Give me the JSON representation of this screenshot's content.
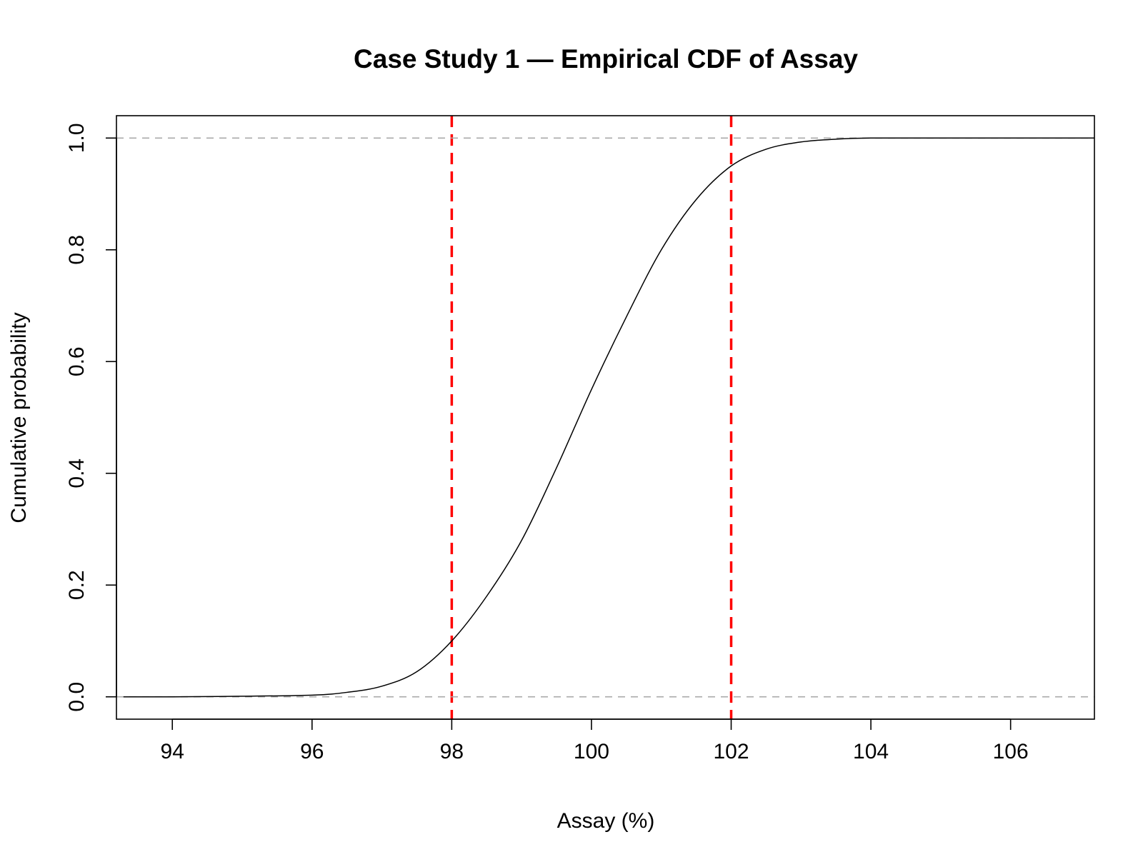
{
  "chart_data": {
    "type": "line",
    "title": "Case Study 1 — Empirical CDF of Assay",
    "xlabel": "Assay (%)",
    "ylabel": "Cumulative probability",
    "xlim": [
      93.2,
      107.2
    ],
    "ylim": [
      -0.04,
      1.04
    ],
    "x_ticks": [
      94,
      96,
      98,
      100,
      102,
      104,
      106
    ],
    "x_tick_labels": [
      "94",
      "96",
      "98",
      "100",
      "102",
      "104",
      "106"
    ],
    "y_ticks": [
      0,
      0.2,
      0.4,
      0.6,
      0.8,
      1.0
    ],
    "y_tick_labels": [
      "0.0",
      "0.2",
      "0.4",
      "0.6",
      "0.8",
      "1.0"
    ],
    "grid": false,
    "legend": "none",
    "series": [
      {
        "x": [
          93.3,
          94,
          95,
          96,
          96.5,
          97,
          97.5,
          98,
          98.5,
          99,
          99.5,
          100,
          100.5,
          101,
          101.5,
          102,
          102.5,
          103,
          103.5,
          104,
          105,
          106,
          107.2
        ],
        "y": [
          0.0,
          0.0,
          0.001,
          0.003,
          0.008,
          0.019,
          0.045,
          0.1,
          0.18,
          0.28,
          0.41,
          0.55,
          0.68,
          0.8,
          0.89,
          0.95,
          0.98,
          0.993,
          0.998,
          1.0,
          1.0,
          1.0,
          1.0
        ],
        "color": "#000000"
      }
    ],
    "reference_lines": [
      {
        "orientation": "vertical",
        "value": 98,
        "color": "#ff0000",
        "style": "dashed"
      },
      {
        "orientation": "vertical",
        "value": 102,
        "color": "#ff0000",
        "style": "dashed"
      },
      {
        "orientation": "horizontal",
        "value": 0,
        "color": "#aaaaaa",
        "style": "dashed"
      },
      {
        "orientation": "horizontal",
        "value": 1,
        "color": "#aaaaaa",
        "style": "dashed"
      }
    ]
  }
}
